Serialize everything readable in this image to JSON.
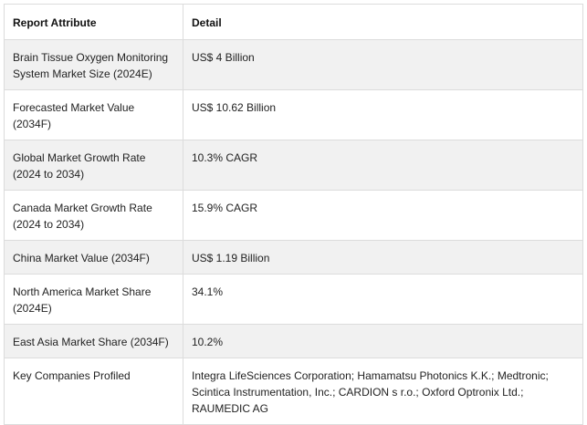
{
  "table": {
    "headers": [
      "Report Attribute",
      "Detail"
    ],
    "rows": [
      {
        "attribute": "Brain Tissue Oxygen Monitoring System Market Size (2024E)",
        "detail": "US$ 4 Billion"
      },
      {
        "attribute": "Forecasted Market Value (2034F)",
        "detail": "US$ 10.62 Billion"
      },
      {
        "attribute": "Global Market Growth Rate (2024 to 2034)",
        "detail": "10.3% CAGR"
      },
      {
        "attribute": "Canada Market Growth Rate (2024 to 2034)",
        "detail": "15.9% CAGR"
      },
      {
        "attribute": "China Market Value (2034F)",
        "detail": "US$ 1.19 Billion"
      },
      {
        "attribute": "North America Market Share (2024E)",
        "detail": "34.1%"
      },
      {
        "attribute": "East Asia Market Share (2034F)",
        "detail": "10.2%"
      },
      {
        "attribute": "Key Companies Profiled",
        "detail": "Integra LifeSciences Corporation; Hamamatsu Photonics K.K.; Medtronic; Scintica Instrumentation, Inc.; CARDION s r.o.; Oxford Optronix Ltd.; RAUMEDIC AG"
      }
    ]
  },
  "colors": {
    "border": "#dcdcdc",
    "shaded_row": "#f1f1f1",
    "text": "#222222"
  }
}
